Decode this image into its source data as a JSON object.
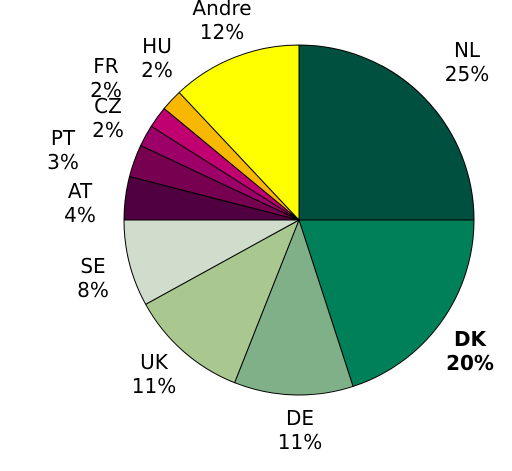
{
  "chart_data": {
    "type": "pie",
    "title": "",
    "slices": [
      {
        "label": "NL",
        "value": 25,
        "value_label": "25%",
        "color": "#005040",
        "bold": false
      },
      {
        "label": "DK",
        "value": 20,
        "value_label": "20%",
        "color": "#008058",
        "bold": true
      },
      {
        "label": "DE",
        "value": 11,
        "value_label": "11%",
        "color": "#80B088",
        "bold": false
      },
      {
        "label": "UK",
        "value": 11,
        "value_label": "11%",
        "color": "#A8C890",
        "bold": false
      },
      {
        "label": "SE",
        "value": 8,
        "value_label": "8%",
        "color": "#D0DCCC",
        "bold": false
      },
      {
        "label": "AT",
        "value": 4,
        "value_label": "4%",
        "color": "#500040",
        "bold": false
      },
      {
        "label": "PT",
        "value": 3,
        "value_label": "3%",
        "color": "#780050",
        "bold": false
      },
      {
        "label": "CZ",
        "value": 2,
        "value_label": "2%",
        "color": "#9C0068",
        "bold": false
      },
      {
        "label": "FR",
        "value": 2,
        "value_label": "2%",
        "color": "#C00070",
        "bold": false
      },
      {
        "label": "HU",
        "value": 2,
        "value_label": "2%",
        "color": "#F8B800",
        "bold": false
      },
      {
        "label": "Andre",
        "value": 12,
        "value_label": "12%",
        "color": "#FFFF00",
        "bold": false
      }
    ],
    "start": "12 o'clock",
    "direction": "clockwise",
    "legend": "none"
  }
}
